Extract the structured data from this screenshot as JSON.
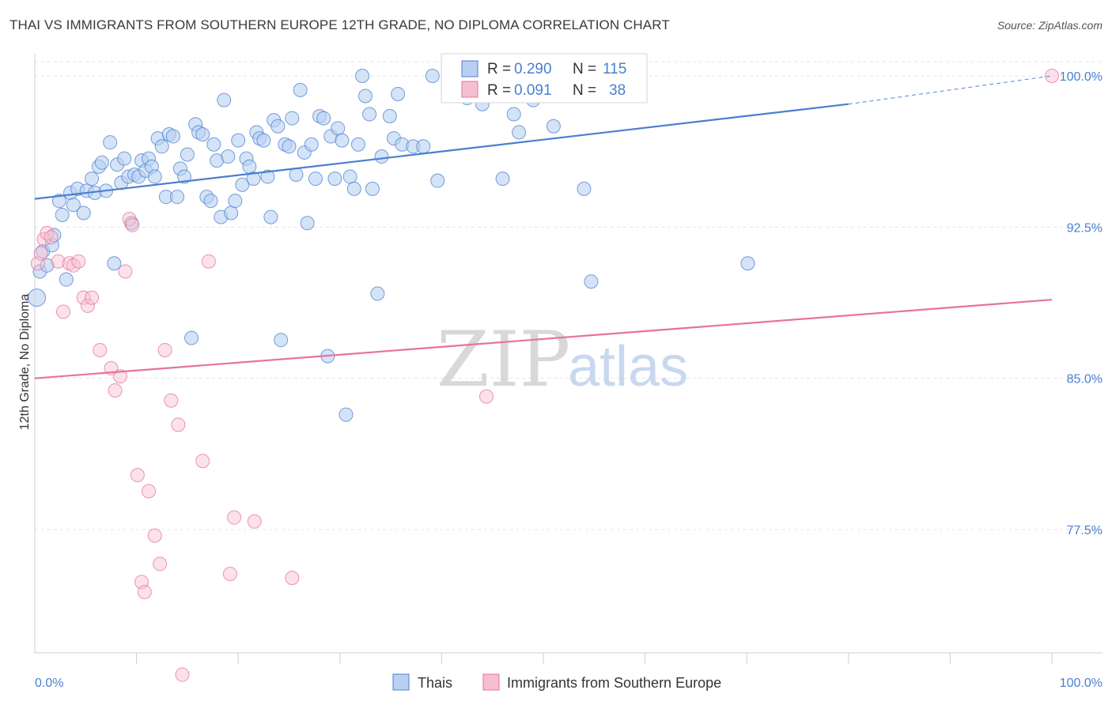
{
  "title": "THAI VS IMMIGRANTS FROM SOUTHERN EUROPE 12TH GRADE, NO DIPLOMA CORRELATION CHART",
  "source": "Source: ZipAtlas.com",
  "watermark": {
    "zip": "ZIP",
    "atlas": "atlas"
  },
  "stats": [
    {
      "r_label": "R = ",
      "r_value": "0.290",
      "n_label": "N = ",
      "n_value": "115",
      "color": "#4a7fd0",
      "fill": "#b9d0f2"
    },
    {
      "r_label": "R = ",
      "r_value": "0.091",
      "n_label": "N = ",
      "n_value": " 38",
      "color": "#4a7fd0",
      "fill": "#f6bfd0"
    }
  ],
  "chart_data": {
    "type": "scatter",
    "title": "THAI VS IMMIGRANTS FROM SOUTHERN EUROPE 12TH GRADE, NO DIPLOMA CORRELATION CHART",
    "xlabel": "",
    "ylabel": "12th Grade, No Diploma",
    "xlim": [
      0,
      100
    ],
    "ylim": [
      70.0,
      101.5
    ],
    "x_tick_labels": [
      {
        "value": 0,
        "label": "0.0%"
      },
      {
        "value": 100,
        "label": "100.0%"
      }
    ],
    "y_ticks": [
      {
        "value": 100.0,
        "label": "100.0%"
      },
      {
        "value": 92.5,
        "label": "92.5%"
      },
      {
        "value": 85.0,
        "label": "85.0%"
      },
      {
        "value": 77.5,
        "label": "77.5%"
      }
    ],
    "grid": true,
    "legend_placement": "bottom",
    "series": [
      {
        "name": "Thais",
        "color": "#4a7fd0",
        "fill": "#b9d0f2",
        "trend": {
          "x0": 0,
          "y0": 93.9,
          "x1": 80,
          "y1": 98.6,
          "dashed_to_x": 100,
          "dashed_to_y": 100.0
        },
        "points": [
          [
            0.2,
            89.0
          ],
          [
            0.5,
            90.3
          ],
          [
            0.8,
            91.3
          ],
          [
            1.2,
            90.6
          ],
          [
            1.7,
            91.6
          ],
          [
            1.9,
            92.1
          ],
          [
            2.4,
            93.8
          ],
          [
            2.7,
            93.1
          ],
          [
            3.1,
            89.9
          ],
          [
            3.5,
            94.2
          ],
          [
            3.8,
            93.6
          ],
          [
            4.2,
            94.4
          ],
          [
            4.8,
            93.2
          ],
          [
            5.1,
            94.3
          ],
          [
            5.6,
            94.9
          ],
          [
            5.9,
            94.2
          ],
          [
            6.3,
            95.5
          ],
          [
            6.6,
            95.7
          ],
          [
            7.0,
            94.3
          ],
          [
            7.4,
            96.7
          ],
          [
            7.8,
            90.7
          ],
          [
            8.1,
            95.6
          ],
          [
            8.5,
            94.7
          ],
          [
            8.8,
            95.9
          ],
          [
            9.2,
            95.0
          ],
          [
            9.5,
            92.7
          ],
          [
            9.8,
            95.1
          ],
          [
            10.2,
            95.0
          ],
          [
            10.5,
            95.8
          ],
          [
            10.9,
            95.3
          ],
          [
            11.2,
            95.9
          ],
          [
            11.5,
            95.5
          ],
          [
            11.8,
            95.0
          ],
          [
            12.1,
            96.9
          ],
          [
            12.5,
            96.5
          ],
          [
            12.9,
            94.0
          ],
          [
            13.2,
            97.1
          ],
          [
            13.6,
            97.0
          ],
          [
            14.0,
            94.0
          ],
          [
            14.3,
            95.4
          ],
          [
            14.7,
            95.0
          ],
          [
            15.0,
            96.1
          ],
          [
            15.4,
            87.0
          ],
          [
            15.8,
            97.6
          ],
          [
            16.1,
            97.2
          ],
          [
            16.5,
            97.1
          ],
          [
            16.9,
            94.0
          ],
          [
            17.3,
            93.8
          ],
          [
            17.6,
            96.6
          ],
          [
            17.9,
            95.8
          ],
          [
            18.3,
            93.0
          ],
          [
            18.6,
            98.8
          ],
          [
            19.0,
            96.0
          ],
          [
            19.3,
            93.2
          ],
          [
            19.7,
            93.8
          ],
          [
            20.0,
            96.8
          ],
          [
            20.4,
            94.6
          ],
          [
            20.8,
            95.9
          ],
          [
            21.1,
            95.5
          ],
          [
            21.5,
            94.9
          ],
          [
            21.8,
            97.2
          ],
          [
            22.1,
            96.9
          ],
          [
            22.5,
            96.8
          ],
          [
            22.9,
            95.0
          ],
          [
            23.2,
            93.0
          ],
          [
            23.5,
            97.8
          ],
          [
            23.9,
            97.5
          ],
          [
            24.2,
            86.9
          ],
          [
            24.6,
            96.6
          ],
          [
            25.0,
            96.5
          ],
          [
            25.3,
            97.9
          ],
          [
            25.7,
            95.1
          ],
          [
            26.1,
            99.3
          ],
          [
            26.5,
            96.2
          ],
          [
            26.8,
            92.7
          ],
          [
            27.2,
            96.6
          ],
          [
            27.6,
            94.9
          ],
          [
            28.0,
            98.0
          ],
          [
            28.4,
            97.9
          ],
          [
            28.8,
            86.1
          ],
          [
            29.1,
            97.0
          ],
          [
            29.5,
            94.9
          ],
          [
            29.8,
            97.4
          ],
          [
            30.2,
            96.8
          ],
          [
            30.6,
            83.2
          ],
          [
            31.0,
            95.0
          ],
          [
            31.4,
            94.4
          ],
          [
            31.8,
            96.6
          ],
          [
            32.2,
            100.0
          ],
          [
            32.5,
            99.0
          ],
          [
            32.9,
            98.1
          ],
          [
            33.2,
            94.4
          ],
          [
            33.7,
            89.2
          ],
          [
            34.1,
            96.0
          ],
          [
            34.9,
            98.0
          ],
          [
            35.3,
            96.9
          ],
          [
            35.7,
            99.1
          ],
          [
            36.1,
            96.6
          ],
          [
            37.2,
            96.5
          ],
          [
            38.2,
            96.5
          ],
          [
            39.1,
            100.0
          ],
          [
            39.6,
            94.8
          ],
          [
            41.0,
            99.8
          ],
          [
            41.4,
            100.0
          ],
          [
            41.8,
            99.5
          ],
          [
            42.5,
            98.9
          ],
          [
            44.0,
            98.6
          ],
          [
            46.0,
            94.9
          ],
          [
            47.1,
            98.1
          ],
          [
            47.6,
            97.2
          ],
          [
            49.0,
            98.8
          ],
          [
            51.0,
            97.5
          ],
          [
            54.0,
            94.4
          ],
          [
            54.7,
            89.8
          ],
          [
            70.1,
            90.7
          ]
        ]
      },
      {
        "name": "Immigrants from Southern Europe",
        "color": "#e8729b",
        "fill": "#f6bfd0",
        "trend": {
          "x0": 0,
          "y0": 85.0,
          "x1": 100,
          "y1": 88.9
        },
        "points": [
          [
            0.3,
            90.7
          ],
          [
            0.6,
            91.2
          ],
          [
            0.9,
            91.9
          ],
          [
            1.2,
            92.2
          ],
          [
            1.6,
            92.0
          ],
          [
            2.3,
            90.8
          ],
          [
            2.8,
            88.3
          ],
          [
            3.4,
            90.7
          ],
          [
            3.8,
            90.6
          ],
          [
            4.3,
            90.8
          ],
          [
            4.8,
            89.0
          ],
          [
            5.2,
            88.6
          ],
          [
            5.6,
            89.0
          ],
          [
            6.4,
            86.4
          ],
          [
            7.5,
            85.5
          ],
          [
            7.9,
            84.4
          ],
          [
            8.4,
            85.1
          ],
          [
            8.9,
            90.3
          ],
          [
            9.3,
            92.9
          ],
          [
            9.6,
            92.6
          ],
          [
            10.1,
            80.2
          ],
          [
            10.5,
            74.9
          ],
          [
            10.8,
            74.4
          ],
          [
            11.2,
            79.4
          ],
          [
            11.8,
            77.2
          ],
          [
            12.3,
            75.8
          ],
          [
            12.8,
            86.4
          ],
          [
            13.4,
            83.9
          ],
          [
            14.1,
            82.7
          ],
          [
            14.5,
            70.3
          ],
          [
            16.5,
            80.9
          ],
          [
            17.1,
            90.8
          ],
          [
            19.2,
            75.3
          ],
          [
            19.6,
            78.1
          ],
          [
            21.6,
            77.9
          ],
          [
            25.3,
            75.1
          ],
          [
            44.4,
            84.1
          ],
          [
            100.0,
            100.0
          ]
        ]
      }
    ]
  }
}
